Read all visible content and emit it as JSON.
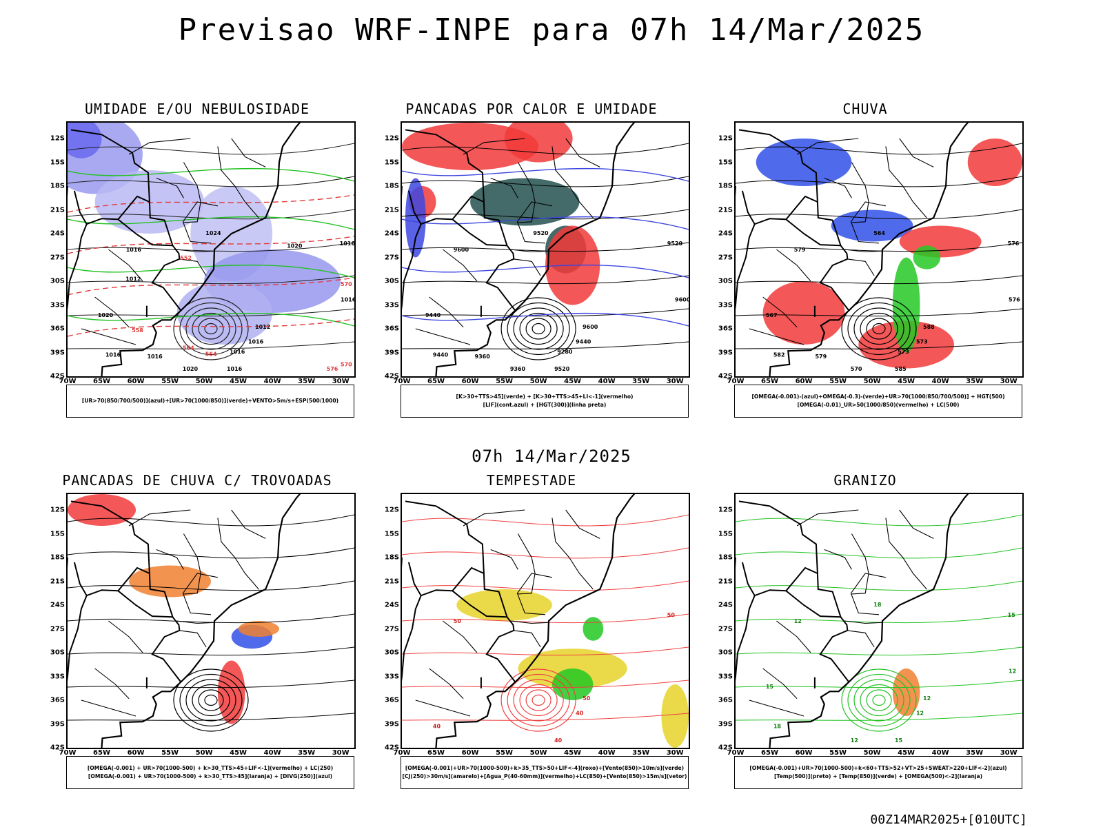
{
  "title": "Previsao WRF-INPE  para 07h 14/Mar/2025",
  "mid_time": "07h 14/Mar/2025",
  "footer": "00Z14MAR2025+[010UTC]",
  "chart_data": [
    {
      "type": "map",
      "title": "UMIDADE E/OU NEBULOSIDADE",
      "lat_ticks": [
        "12S",
        "15S",
        "18S",
        "21S",
        "24S",
        "27S",
        "30S",
        "33S",
        "36S",
        "39S",
        "42S"
      ],
      "lon_ticks": [
        "70W",
        "65W",
        "60W",
        "55W",
        "50W",
        "45W",
        "40W",
        "35W",
        "30W"
      ],
      "lat_range": [
        -42,
        -10
      ],
      "lon_range": [
        -70,
        -28
      ],
      "contour_labels": [
        "1012",
        "1016",
        "1016",
        "1016",
        "1016",
        "1016",
        "1020",
        "1020",
        "1024",
        "1016",
        "1016",
        "1016",
        "1012",
        "1020",
        "570",
        "564",
        "558",
        "552",
        "570",
        "576",
        "564"
      ],
      "legend": [
        "[UR>70(850/700/500)](azul)+[UR>70(1000/850)](verde)+VENTO>5m/s+ESP(500/1000)"
      ]
    },
    {
      "type": "map",
      "title": "PANCADAS POR CALOR E UMIDADE",
      "lat_ticks": [
        "12S",
        "15S",
        "18S",
        "21S",
        "24S",
        "27S",
        "30S",
        "33S",
        "36S",
        "39S",
        "42S"
      ],
      "lon_ticks": [
        "70W",
        "65W",
        "60W",
        "55W",
        "50W",
        "45W",
        "40W",
        "35W",
        "30W"
      ],
      "lat_range": [
        -42,
        -10
      ],
      "lon_range": [
        -70,
        -28
      ],
      "contour_labels": [
        "9600",
        "9520",
        "9440",
        "9600",
        "9520",
        "9440",
        "9360",
        "9440",
        "9520",
        "9600",
        "9280",
        "9360"
      ],
      "legend": [
        "[K>30+TTS>45](verde) + [K>30+TTS>45+LI<-1](vermelho)",
        "[LIF](cont.azul) + [HGT(300)](linha preta)"
      ]
    },
    {
      "type": "map",
      "title": "CHUVA",
      "lat_ticks": [
        "12S",
        "15S",
        "18S",
        "21S",
        "24S",
        "27S",
        "30S",
        "33S",
        "36S",
        "39S",
        "42S"
      ],
      "lon_ticks": [
        "70W",
        "65W",
        "60W",
        "55W",
        "50W",
        "45W",
        "40W",
        "35W",
        "30W"
      ],
      "lat_range": [
        -42,
        -10
      ],
      "lon_range": [
        -70,
        -28
      ],
      "contour_labels": [
        "588",
        "585",
        "582",
        "579",
        "576",
        "573",
        "570",
        "567",
        "564",
        "576",
        "573",
        "579"
      ],
      "legend": [
        "[OMEGA(-0.001)-(azul)+OMEGA(-0.3)-(verde)+UR>70(1000/850/700/500)] + HGT(500)",
        "[OMEGA(-0.01)_UR>50(1000/850)(vermelho) + LC(500)"
      ]
    },
    {
      "type": "map",
      "title": "PANCADAS DE CHUVA C/ TROVOADAS",
      "lat_ticks": [
        "12S",
        "15S",
        "18S",
        "21S",
        "24S",
        "27S",
        "30S",
        "33S",
        "36S",
        "39S",
        "42S"
      ],
      "lon_ticks": [
        "70W",
        "65W",
        "60W",
        "55W",
        "50W",
        "45W",
        "40W",
        "35W",
        "30W"
      ],
      "lat_range": [
        -42,
        -10
      ],
      "lon_range": [
        -70,
        -28
      ],
      "contour_labels": [],
      "legend": [
        "[OMEGA(-0.001) + UR>70(1000-500) + k>30_TTS>45+LIF<-1](vermelho) + LC(250)",
        "[OMEGA(-0.001) + UR>70(1000-500) + k>30_TTS>45](laranja) + [DIVG(250)](azul)"
      ]
    },
    {
      "type": "map",
      "title": "TEMPESTADE",
      "lat_ticks": [
        "12S",
        "15S",
        "18S",
        "21S",
        "24S",
        "27S",
        "30S",
        "33S",
        "36S",
        "39S",
        "42S"
      ],
      "lon_ticks": [
        "70W",
        "65W",
        "60W",
        "55W",
        "50W",
        "45W",
        "40W",
        "35W",
        "30W"
      ],
      "lat_range": [
        -42,
        -10
      ],
      "lon_range": [
        -70,
        -28
      ],
      "contour_labels": [
        "50",
        "40",
        "40",
        "50",
        "50",
        "40"
      ],
      "legend": [
        "[OMEGA(-0.001)+UR>70(1000-500)+k>35_TTS>50+LIF<-4](roxo)+[Vento(850)>10m/s](verde)",
        "[CJ(250)>30m/s](amarelo)+[Agua_P(40-60mm)](vermelho)+LC(850)+[Vento(850)>15m/s](vetor)"
      ]
    },
    {
      "type": "map",
      "title": "GRANIZO",
      "lat_ticks": [
        "12S",
        "15S",
        "18S",
        "21S",
        "24S",
        "27S",
        "30S",
        "33S",
        "36S",
        "39S",
        "42S"
      ],
      "lon_ticks": [
        "70W",
        "65W",
        "60W",
        "55W",
        "50W",
        "45W",
        "40W",
        "35W",
        "30W"
      ],
      "lat_range": [
        -42,
        -10
      ],
      "lon_range": [
        -70,
        -28
      ],
      "contour_labels": [
        "12",
        "15",
        "18",
        "12",
        "15",
        "12",
        "12",
        "15",
        "18",
        "12"
      ],
      "legend": [
        "[OMEGA(-0.001)+UR>70(1000-500)+k<60+TTS>52+VT>25+SWEAT>220+LIF<-2](azul)",
        "[Temp(500)](preto) + [Temp(850)](verde) + [OMEGA(500)<-2](laranja)"
      ]
    }
  ]
}
